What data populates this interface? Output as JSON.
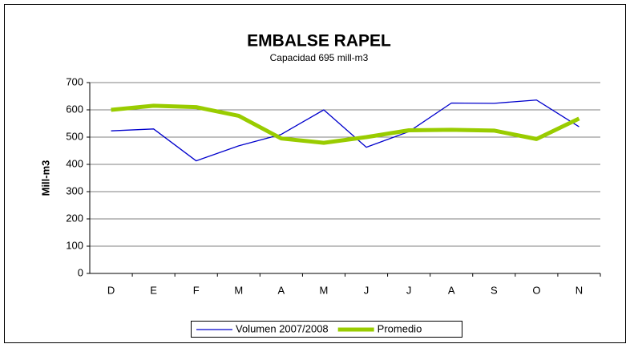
{
  "chart_data": {
    "type": "line",
    "title": "EMBALSE RAPEL",
    "subtitle": "Capacidad 695 mill-m3",
    "y_label": "Mill-m3",
    "categories": [
      "D",
      "E",
      "F",
      "M",
      "A",
      "M",
      "J",
      "J",
      "A",
      "S",
      "O",
      "N"
    ],
    "series": [
      {
        "name": "Volumen  2007/2008",
        "color": "#0000cc",
        "width": 1.3,
        "values": [
          523,
          530,
          413,
          468,
          510,
          600,
          463,
          520,
          625,
          624,
          636,
          538
        ]
      },
      {
        "name": "Promedio",
        "color": "#99cc00",
        "width": 5,
        "values": [
          600,
          615,
          610,
          578,
          495,
          479,
          500,
          525,
          527,
          524,
          493,
          568
        ]
      }
    ],
    "ylim": [
      0,
      700
    ],
    "yticks": [
      0,
      100,
      200,
      300,
      400,
      500,
      600,
      700
    ],
    "grid": true,
    "legend": "bottom"
  }
}
